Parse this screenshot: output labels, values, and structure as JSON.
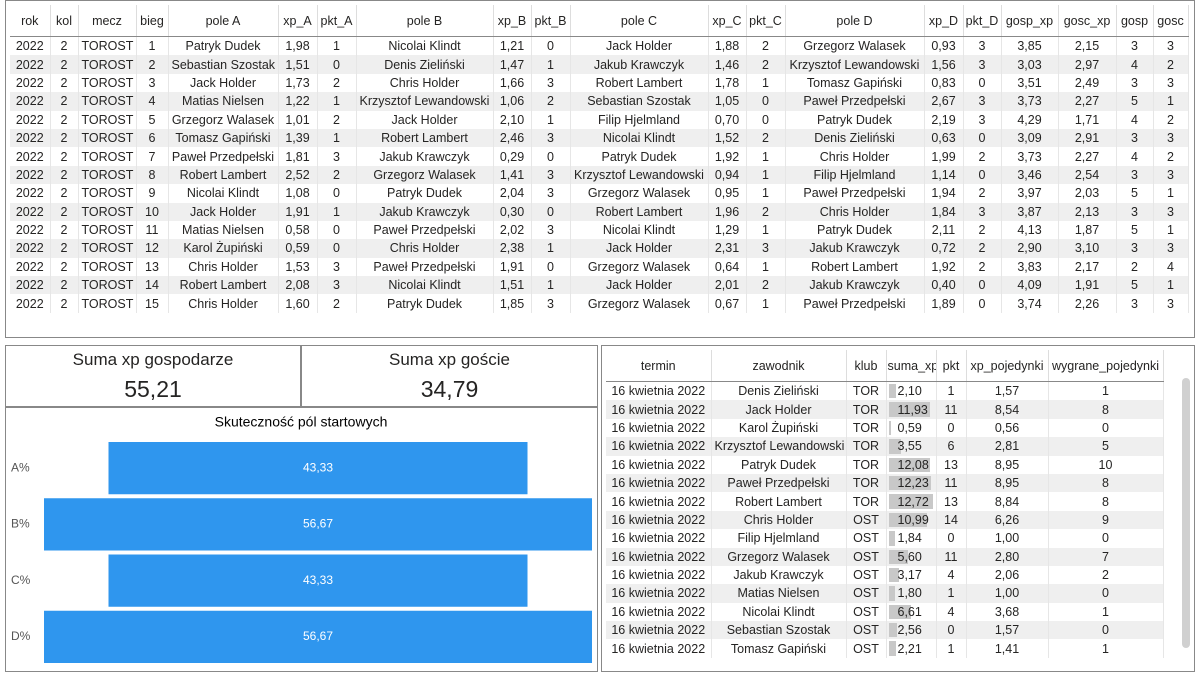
{
  "top_table": {
    "columns": [
      "rok",
      "kol",
      "mecz",
      "bieg",
      "pole A",
      "xp_A",
      "pkt_A",
      "pole B",
      "xp_B",
      "pkt_B",
      "pole C",
      "xp_C",
      "pkt_C",
      "pole D",
      "xp_D",
      "pkt_D",
      "gosp_xp",
      "gosc_xp",
      "gosp",
      "gosc"
    ],
    "rows": [
      [
        "2022",
        "2",
        "TOROST",
        "1",
        "Patryk Dudek",
        "1,98",
        "1",
        "Nicolai Klindt",
        "1,21",
        "0",
        "Jack Holder",
        "1,88",
        "2",
        "Grzegorz Walasek",
        "0,93",
        "3",
        "3,85",
        "2,15",
        "3",
        "3"
      ],
      [
        "2022",
        "2",
        "TOROST",
        "2",
        "Sebastian Szostak",
        "1,51",
        "0",
        "Denis Zieliński",
        "1,47",
        "1",
        "Jakub Krawczyk",
        "1,46",
        "2",
        "Krzysztof Lewandowski",
        "1,56",
        "3",
        "3,03",
        "2,97",
        "4",
        "2"
      ],
      [
        "2022",
        "2",
        "TOROST",
        "3",
        "Jack Holder",
        "1,73",
        "2",
        "Chris Holder",
        "1,66",
        "3",
        "Robert Lambert",
        "1,78",
        "1",
        "Tomasz Gapiński",
        "0,83",
        "0",
        "3,51",
        "2,49",
        "3",
        "3"
      ],
      [
        "2022",
        "2",
        "TOROST",
        "4",
        "Matias Nielsen",
        "1,22",
        "1",
        "Krzysztof Lewandowski",
        "1,06",
        "2",
        "Sebastian Szostak",
        "1,05",
        "0",
        "Paweł Przedpełski",
        "2,67",
        "3",
        "3,73",
        "2,27",
        "5",
        "1"
      ],
      [
        "2022",
        "2",
        "TOROST",
        "5",
        "Grzegorz Walasek",
        "1,01",
        "2",
        "Jack Holder",
        "2,10",
        "1",
        "Filip Hjelmland",
        "0,70",
        "0",
        "Patryk Dudek",
        "2,19",
        "3",
        "4,29",
        "1,71",
        "4",
        "2"
      ],
      [
        "2022",
        "2",
        "TOROST",
        "6",
        "Tomasz Gapiński",
        "1,39",
        "1",
        "Robert Lambert",
        "2,46",
        "3",
        "Nicolai Klindt",
        "1,52",
        "2",
        "Denis Zieliński",
        "0,63",
        "0",
        "3,09",
        "2,91",
        "3",
        "3"
      ],
      [
        "2022",
        "2",
        "TOROST",
        "7",
        "Paweł Przedpełski",
        "1,81",
        "3",
        "Jakub Krawczyk",
        "0,29",
        "0",
        "Patryk Dudek",
        "1,92",
        "1",
        "Chris Holder",
        "1,99",
        "2",
        "3,73",
        "2,27",
        "4",
        "2"
      ],
      [
        "2022",
        "2",
        "TOROST",
        "8",
        "Robert Lambert",
        "2,52",
        "2",
        "Grzegorz Walasek",
        "1,41",
        "3",
        "Krzysztof Lewandowski",
        "0,94",
        "1",
        "Filip Hjelmland",
        "1,14",
        "0",
        "3,46",
        "2,54",
        "3",
        "3"
      ],
      [
        "2022",
        "2",
        "TOROST",
        "9",
        "Nicolai Klindt",
        "1,08",
        "0",
        "Patryk Dudek",
        "2,04",
        "3",
        "Grzegorz Walasek",
        "0,95",
        "1",
        "Paweł Przedpełski",
        "1,94",
        "2",
        "3,97",
        "2,03",
        "5",
        "1"
      ],
      [
        "2022",
        "2",
        "TOROST",
        "10",
        "Jack Holder",
        "1,91",
        "1",
        "Jakub Krawczyk",
        "0,30",
        "0",
        "Robert Lambert",
        "1,96",
        "2",
        "Chris Holder",
        "1,84",
        "3",
        "3,87",
        "2,13",
        "3",
        "3"
      ],
      [
        "2022",
        "2",
        "TOROST",
        "11",
        "Matias Nielsen",
        "0,58",
        "0",
        "Paweł Przedpełski",
        "2,02",
        "3",
        "Nicolai Klindt",
        "1,29",
        "1",
        "Patryk Dudek",
        "2,11",
        "2",
        "4,13",
        "1,87",
        "5",
        "1"
      ],
      [
        "2022",
        "2",
        "TOROST",
        "12",
        "Karol Żupiński",
        "0,59",
        "0",
        "Chris Holder",
        "2,38",
        "1",
        "Jack Holder",
        "2,31",
        "3",
        "Jakub Krawczyk",
        "0,72",
        "2",
        "2,90",
        "3,10",
        "3",
        "3"
      ],
      [
        "2022",
        "2",
        "TOROST",
        "13",
        "Chris Holder",
        "1,53",
        "3",
        "Paweł Przedpełski",
        "1,91",
        "0",
        "Grzegorz Walasek",
        "0,64",
        "1",
        "Robert Lambert",
        "1,92",
        "2",
        "3,83",
        "2,17",
        "2",
        "4"
      ],
      [
        "2022",
        "2",
        "TOROST",
        "14",
        "Robert Lambert",
        "2,08",
        "3",
        "Nicolai Klindt",
        "1,51",
        "1",
        "Jack Holder",
        "2,01",
        "2",
        "Jakub Krawczyk",
        "0,40",
        "0",
        "4,09",
        "1,91",
        "5",
        "1"
      ],
      [
        "2022",
        "2",
        "TOROST",
        "15",
        "Chris Holder",
        "1,60",
        "2",
        "Patryk Dudek",
        "1,85",
        "3",
        "Grzegorz Walasek",
        "0,67",
        "1",
        "Paweł Przedpełski",
        "1,89",
        "0",
        "3,74",
        "2,26",
        "3",
        "3"
      ]
    ]
  },
  "cards": [
    {
      "label": "Suma xp gospodarze",
      "value": "55,21"
    },
    {
      "label": "Suma xp goście",
      "value": "34,79"
    }
  ],
  "chart_data": {
    "type": "funnel",
    "title": "Skuteczność pól startowych",
    "categories": [
      "A%",
      "B%",
      "C%",
      "D%"
    ],
    "values": [
      43.33,
      56.67,
      43.33,
      56.67
    ],
    "value_labels": [
      "43,33",
      "56,67",
      "43,33",
      "56,67"
    ],
    "color": "#2f96ee"
  },
  "bottom_table": {
    "columns": [
      "termin",
      "zawodnik",
      "klub",
      "suma_xp",
      "pkt",
      "xp_pojedynki",
      "wygrane_pojedynki"
    ],
    "rows": [
      [
        "16 kwietnia 2022",
        "Denis Zieliński",
        "TOR",
        "2,10",
        "1",
        "1,57",
        "1"
      ],
      [
        "16 kwietnia 2022",
        "Jack Holder",
        "TOR",
        "11,93",
        "11",
        "8,54",
        "8"
      ],
      [
        "16 kwietnia 2022",
        "Karol Żupiński",
        "TOR",
        "0,59",
        "0",
        "0,56",
        "0"
      ],
      [
        "16 kwietnia 2022",
        "Krzysztof Lewandowski",
        "TOR",
        "3,55",
        "6",
        "2,81",
        "5"
      ],
      [
        "16 kwietnia 2022",
        "Patryk Dudek",
        "TOR",
        "12,08",
        "13",
        "8,95",
        "10"
      ],
      [
        "16 kwietnia 2022",
        "Paweł Przedpełski",
        "TOR",
        "12,23",
        "11",
        "8,95",
        "8"
      ],
      [
        "16 kwietnia 2022",
        "Robert Lambert",
        "TOR",
        "12,72",
        "13",
        "8,84",
        "8"
      ],
      [
        "16 kwietnia 2022",
        "Chris Holder",
        "OST",
        "10,99",
        "14",
        "6,26",
        "9"
      ],
      [
        "16 kwietnia 2022",
        "Filip Hjelmland",
        "OST",
        "1,84",
        "0",
        "1,00",
        "0"
      ],
      [
        "16 kwietnia 2022",
        "Grzegorz Walasek",
        "OST",
        "5,60",
        "11",
        "2,80",
        "7"
      ],
      [
        "16 kwietnia 2022",
        "Jakub Krawczyk",
        "OST",
        "3,17",
        "4",
        "2,06",
        "2"
      ],
      [
        "16 kwietnia 2022",
        "Matias Nielsen",
        "OST",
        "1,80",
        "1",
        "1,00",
        "0"
      ],
      [
        "16 kwietnia 2022",
        "Nicolai Klindt",
        "OST",
        "6,61",
        "4",
        "3,68",
        "1"
      ],
      [
        "16 kwietnia 2022",
        "Sebastian Szostak",
        "OST",
        "2,56",
        "0",
        "1,57",
        "0"
      ],
      [
        "16 kwietnia 2022",
        "Tomasz Gapiński",
        "OST",
        "2,21",
        "1",
        "1,41",
        "1"
      ]
    ]
  }
}
